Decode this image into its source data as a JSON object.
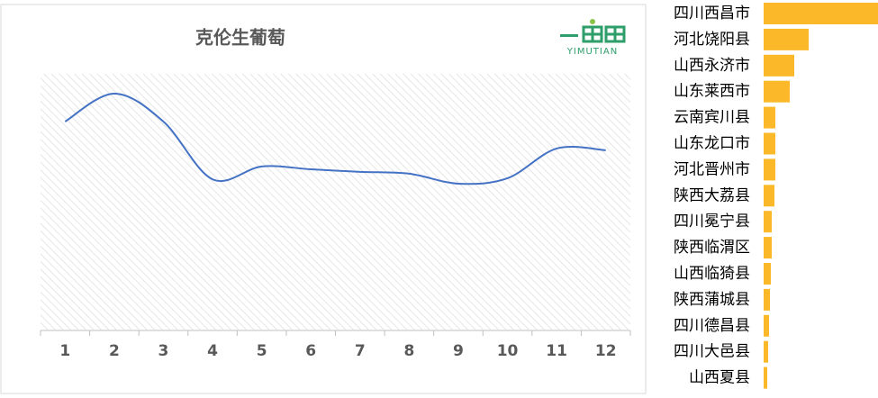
{
  "chart_data": [
    {
      "type": "line",
      "title": "克伦生葡萄",
      "categories": [
        "1",
        "2",
        "3",
        "4",
        "5",
        "6",
        "7",
        "8",
        "9",
        "10",
        "11",
        "12"
      ],
      "series": [
        {
          "color": "#4472c4",
          "values": [
            80.7,
            91.6,
            80.7,
            58.2,
            63.2,
            62.1,
            61.1,
            60.4,
            56.5,
            58.6,
            70.2,
            69.5
          ]
        }
      ],
      "ylim": [
        0,
        100
      ]
    },
    {
      "type": "bar",
      "orientation": "horizontal",
      "color": "#fbb829",
      "categories": [
        "四川西昌市",
        "河北饶阳县",
        "山西永济市",
        "山东莱西市",
        "云南宾川县",
        "山东龙口市",
        "河北晋州市",
        "陕西大荔县",
        "四川冕宁县",
        "陕西临渭区",
        "山西临猗县",
        "陕西蒲城县",
        "四川德昌县",
        "四川大邑县",
        "山西夏县"
      ],
      "values": [
        127,
        50,
        34,
        29,
        13,
        13,
        13,
        12,
        9,
        9,
        8,
        7,
        6,
        5,
        4
      ],
      "xlim": [
        0,
        127
      ]
    }
  ],
  "logo": {
    "text": "YIMUTIAN"
  }
}
